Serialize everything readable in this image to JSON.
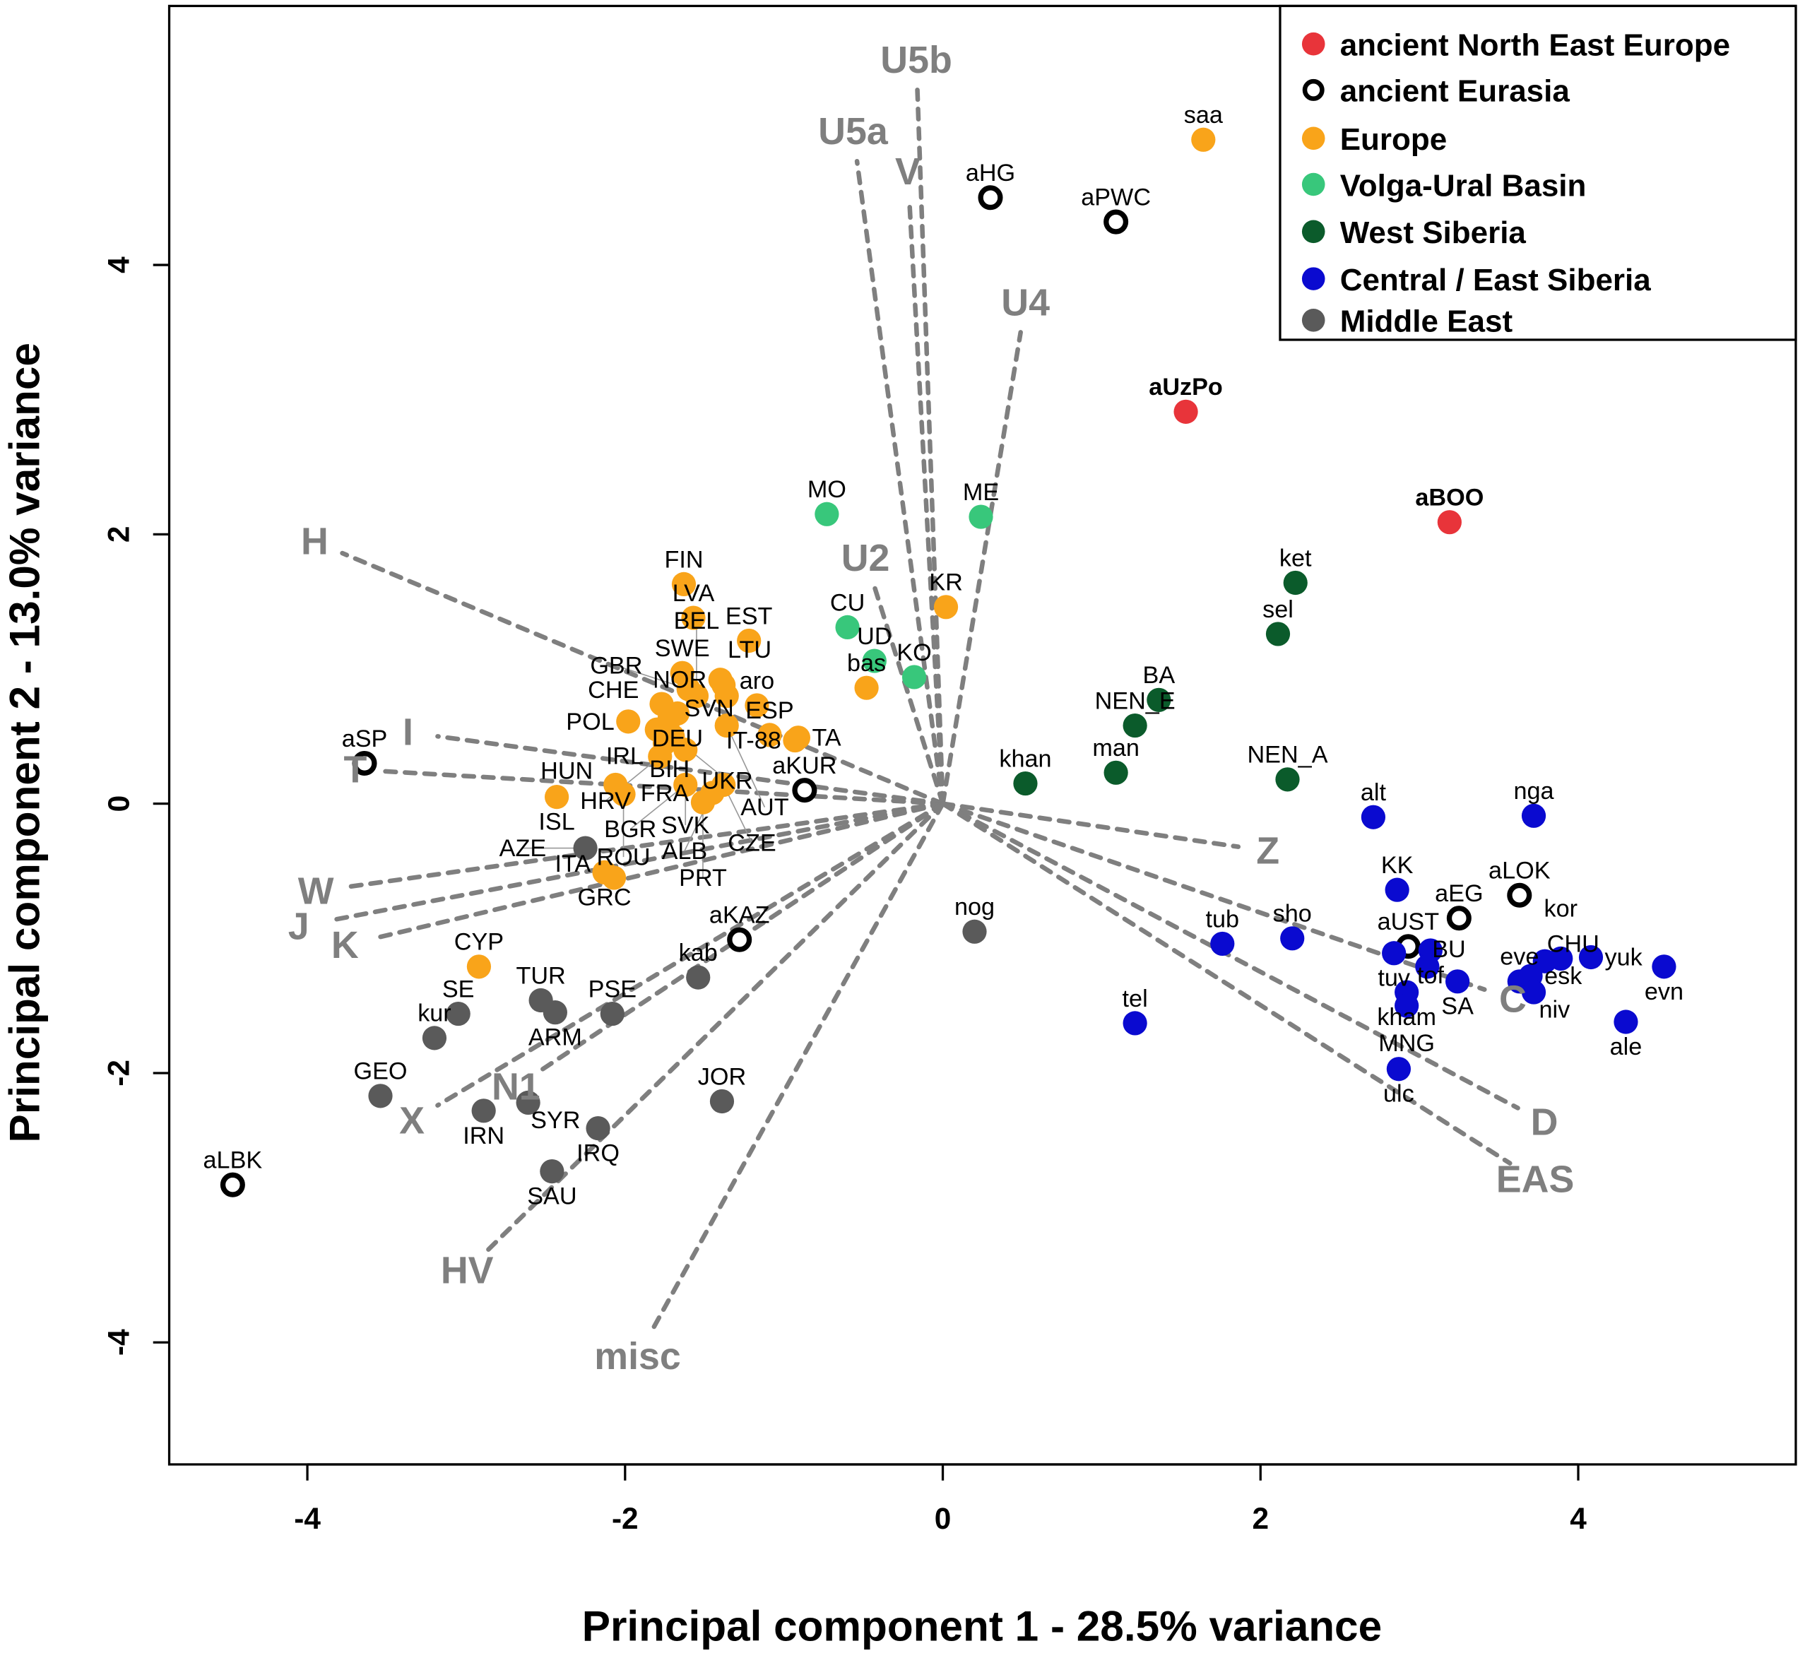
{
  "chart_data": {
    "type": "scatter",
    "subtype": "pca-biplot",
    "xlabel": "Principal component 1 - 28.5% variance",
    "ylabel": "Principal component 2 - 13.0% variance",
    "xlim": [
      -4.87,
      5.37
    ],
    "ylim": [
      -4.9,
      5.92
    ],
    "xticks": [
      -4,
      -2,
      0,
      2,
      4
    ],
    "yticks": [
      -4,
      -2,
      0,
      2,
      4
    ],
    "grid": false,
    "legend_placement": "top-right",
    "groups": [
      {
        "name": "ancient North East Europe",
        "color": "#e8343a",
        "marker": "filled",
        "bold_labels": true,
        "points": [
          {
            "label": "aUzPo",
            "x": 1.53,
            "y": 2.91
          },
          {
            "label": "aBOO",
            "x": 3.19,
            "y": 2.09
          }
        ]
      },
      {
        "name": "ancient Eurasia",
        "color": "#000000",
        "marker": "open",
        "points": [
          {
            "label": "aHG",
            "x": 0.3,
            "y": 4.5
          },
          {
            "label": "aPWC",
            "x": 1.09,
            "y": 4.32
          },
          {
            "label": "aSP",
            "x": -3.64,
            "y": 0.3
          },
          {
            "label": "aKUR",
            "x": -0.87,
            "y": 0.1
          },
          {
            "label": "aKAZ",
            "x": -1.28,
            "y": -1.01
          },
          {
            "label": "aLBK",
            "x": -4.47,
            "y": -2.83
          },
          {
            "label": "aEG",
            "x": 3.25,
            "y": -0.85
          },
          {
            "label": "aLOK",
            "x": 3.63,
            "y": -0.68
          },
          {
            "label": "aUST",
            "x": 2.93,
            "y": -1.06
          }
        ]
      },
      {
        "name": "Europe",
        "color": "#f9a41a",
        "marker": "filled",
        "points": [
          {
            "label": "saa",
            "x": 1.64,
            "y": 4.93
          },
          {
            "label": "FIN",
            "x": -1.63,
            "y": 1.63
          },
          {
            "label": "LVA",
            "x": -1.57,
            "y": 1.38
          },
          {
            "label": "EST",
            "x": -1.22,
            "y": 1.21
          },
          {
            "label": "KR",
            "x": 0.02,
            "y": 1.46
          },
          {
            "label": "bas",
            "x": -0.48,
            "y": 0.86
          },
          {
            "label": "aro",
            "x": -1.17,
            "y": 0.73
          },
          {
            "label": "ESP",
            "x": -1.09,
            "y": 0.51
          },
          {
            "label": "TA",
            "x": -0.91,
            "y": 0.49
          },
          {
            "label": "IT-88",
            "x": -0.93,
            "y": 0.47
          },
          {
            "label": "SWE",
            "x": -1.64,
            "y": 0.97
          },
          {
            "label": "NOR",
            "x": -1.4,
            "y": 0.92
          },
          {
            "label": "SVN",
            "x": -1.38,
            "y": 0.88
          },
          {
            "label": "LTU",
            "x": -1.36,
            "y": 0.8
          },
          {
            "label": "DEU",
            "x": -1.67,
            "y": 0.67
          },
          {
            "label": "POL",
            "x": -1.98,
            "y": 0.61
          },
          {
            "label": "CHE",
            "x": -1.77,
            "y": 0.74
          },
          {
            "label": "BIH",
            "x": -1.72,
            "y": 0.63
          },
          {
            "label": "GBR",
            "x": -1.6,
            "y": 0.85
          },
          {
            "label": "IRL",
            "x": -1.8,
            "y": 0.55
          },
          {
            "label": "BEL",
            "x": -1.55,
            "y": 0.8
          },
          {
            "label": "FRA",
            "x": -1.75,
            "y": 0.45
          },
          {
            "label": "UKR",
            "x": -1.7,
            "y": 0.5
          },
          {
            "label": "SVK",
            "x": -1.62,
            "y": 0.4
          },
          {
            "label": "HRV",
            "x": -1.78,
            "y": 0.35
          },
          {
            "label": "AUT",
            "x": -1.36,
            "y": 0.58
          },
          {
            "label": "BGR",
            "x": -1.62,
            "y": 0.14
          },
          {
            "label": "CZE",
            "x": -1.38,
            "y": 0.14
          },
          {
            "label": "ALB",
            "x": -1.45,
            "y": 0.08
          },
          {
            "label": "PRT",
            "x": -1.51,
            "y": 0.01
          },
          {
            "label": "HUN",
            "x": -2.06,
            "y": 0.14
          },
          {
            "label": "ROU",
            "x": -2.01,
            "y": 0.07
          },
          {
            "label": "ISL",
            "x": -2.43,
            "y": 0.05
          },
          {
            "label": "GRC",
            "x": -2.13,
            "y": -0.51
          },
          {
            "label": "ITA",
            "x": -2.07,
            "y": -0.55
          },
          {
            "label": "CYP",
            "x": -2.92,
            "y": -1.21
          }
        ]
      },
      {
        "name": "Volga-Ural Basin",
        "color": "#38c77b",
        "marker": "filled",
        "points": [
          {
            "label": "MO",
            "x": -0.73,
            "y": 2.15
          },
          {
            "label": "ME",
            "x": 0.24,
            "y": 2.13
          },
          {
            "label": "CU",
            "x": -0.6,
            "y": 1.31
          },
          {
            "label": "UD",
            "x": -0.43,
            "y": 1.06
          },
          {
            "label": "KO",
            "x": -0.18,
            "y": 0.94
          }
        ]
      },
      {
        "name": "West Siberia",
        "color": "#0b5b2b",
        "marker": "filled",
        "points": [
          {
            "label": "ket",
            "x": 2.22,
            "y": 1.64
          },
          {
            "label": "sel",
            "x": 2.11,
            "y": 1.26
          },
          {
            "label": "BA",
            "x": 1.36,
            "y": 0.77
          },
          {
            "label": "NEN_E",
            "x": 1.21,
            "y": 0.58
          },
          {
            "label": "man",
            "x": 1.09,
            "y": 0.23
          },
          {
            "label": "khan",
            "x": 0.52,
            "y": 0.15
          },
          {
            "label": "NEN_A",
            "x": 2.17,
            "y": 0.18
          }
        ]
      },
      {
        "name": "Central / East Siberia",
        "color": "#0a0ad0",
        "marker": "filled",
        "points": [
          {
            "label": "alt",
            "x": 2.71,
            "y": -0.1
          },
          {
            "label": "nga",
            "x": 3.72,
            "y": -0.09
          },
          {
            "label": "KK",
            "x": 2.86,
            "y": -0.64
          },
          {
            "label": "tub",
            "x": 1.76,
            "y": -1.04
          },
          {
            "label": "sho",
            "x": 2.2,
            "y": -1.0
          },
          {
            "label": "tel",
            "x": 1.21,
            "y": -1.63
          },
          {
            "label": "tuv",
            "x": 2.84,
            "y": -1.11
          },
          {
            "label": "tof",
            "x": 3.07,
            "y": -1.09
          },
          {
            "label": "BU",
            "x": 3.05,
            "y": -1.21
          },
          {
            "label": "SA",
            "x": 3.24,
            "y": -1.32
          },
          {
            "label": "kham",
            "x": 2.92,
            "y": -1.4
          },
          {
            "label": "MNG",
            "x": 2.92,
            "y": -1.5
          },
          {
            "label": "ulc",
            "x": 2.87,
            "y": -1.97
          },
          {
            "label": "eve",
            "x": 3.63,
            "y": -1.32
          },
          {
            "label": "esk",
            "x": 3.7,
            "y": -1.28
          },
          {
            "label": "CHU",
            "x": 3.79,
            "y": -1.17
          },
          {
            "label": "kor",
            "x": 3.89,
            "y": -1.15
          },
          {
            "label": "yuk",
            "x": 4.08,
            "y": -1.14
          },
          {
            "label": "evn",
            "x": 4.54,
            "y": -1.21
          },
          {
            "label": "niv",
            "x": 3.72,
            "y": -1.4
          },
          {
            "label": "ale",
            "x": 4.3,
            "y": -1.62
          }
        ]
      },
      {
        "name": "Middle East",
        "color": "#5a5a5a",
        "marker": "filled",
        "points": [
          {
            "label": "AZE",
            "x": -2.25,
            "y": -0.33
          },
          {
            "label": "nog",
            "x": 0.2,
            "y": -0.95
          },
          {
            "label": "kab",
            "x": -1.54,
            "y": -1.29
          },
          {
            "label": "PSE",
            "x": -2.08,
            "y": -1.56
          },
          {
            "label": "TUR",
            "x": -2.53,
            "y": -1.46
          },
          {
            "label": "ARM",
            "x": -2.44,
            "y": -1.55
          },
          {
            "label": "SE",
            "x": -3.05,
            "y": -1.56
          },
          {
            "label": "kur",
            "x": -3.2,
            "y": -1.74
          },
          {
            "label": "GEO",
            "x": -3.54,
            "y": -2.17
          },
          {
            "label": "IRN",
            "x": -2.89,
            "y": -2.28
          },
          {
            "label": "SYR",
            "x": -2.61,
            "y": -2.22
          },
          {
            "label": "IRQ",
            "x": -2.17,
            "y": -2.41
          },
          {
            "label": "JOR",
            "x": -1.39,
            "y": -2.21
          },
          {
            "label": "SAU",
            "x": -2.46,
            "y": -2.73
          }
        ]
      }
    ],
    "loadings": {
      "color": "#7f7f7f",
      "style": "dashed",
      "vectors": [
        {
          "label": "U5b",
          "x": -0.16,
          "y": 5.3
        },
        {
          "label": "U5a",
          "x": -0.54,
          "y": 4.77
        },
        {
          "label": "V",
          "x": -0.21,
          "y": 4.47
        },
        {
          "label": "U4",
          "x": 0.49,
          "y": 3.5
        },
        {
          "label": "U2",
          "x": -0.43,
          "y": 1.61
        },
        {
          "label": "H",
          "x": -3.78,
          "y": 1.86
        },
        {
          "label": "I",
          "x": -3.18,
          "y": 0.5
        },
        {
          "label": "T",
          "x": -3.51,
          "y": 0.24
        },
        {
          "label": "W",
          "x": -3.76,
          "y": -0.62
        },
        {
          "label": "J",
          "x": -3.87,
          "y": -0.87
        },
        {
          "label": "K",
          "x": -3.58,
          "y": -1.0
        },
        {
          "label": "X",
          "x": -3.18,
          "y": -2.24
        },
        {
          "label": "N1",
          "x": -2.53,
          "y": -1.98
        },
        {
          "label": "HV",
          "x": -2.86,
          "y": -3.31
        },
        {
          "label": "misc",
          "x": -1.83,
          "y": -3.91
        },
        {
          "label": "Z",
          "x": 1.86,
          "y": -0.32
        },
        {
          "label": "C",
          "x": 3.41,
          "y": -1.38
        },
        {
          "label": "D",
          "x": 3.62,
          "y": -2.26
        },
        {
          "label": "EAS",
          "x": 3.57,
          "y": -2.67
        }
      ]
    }
  }
}
